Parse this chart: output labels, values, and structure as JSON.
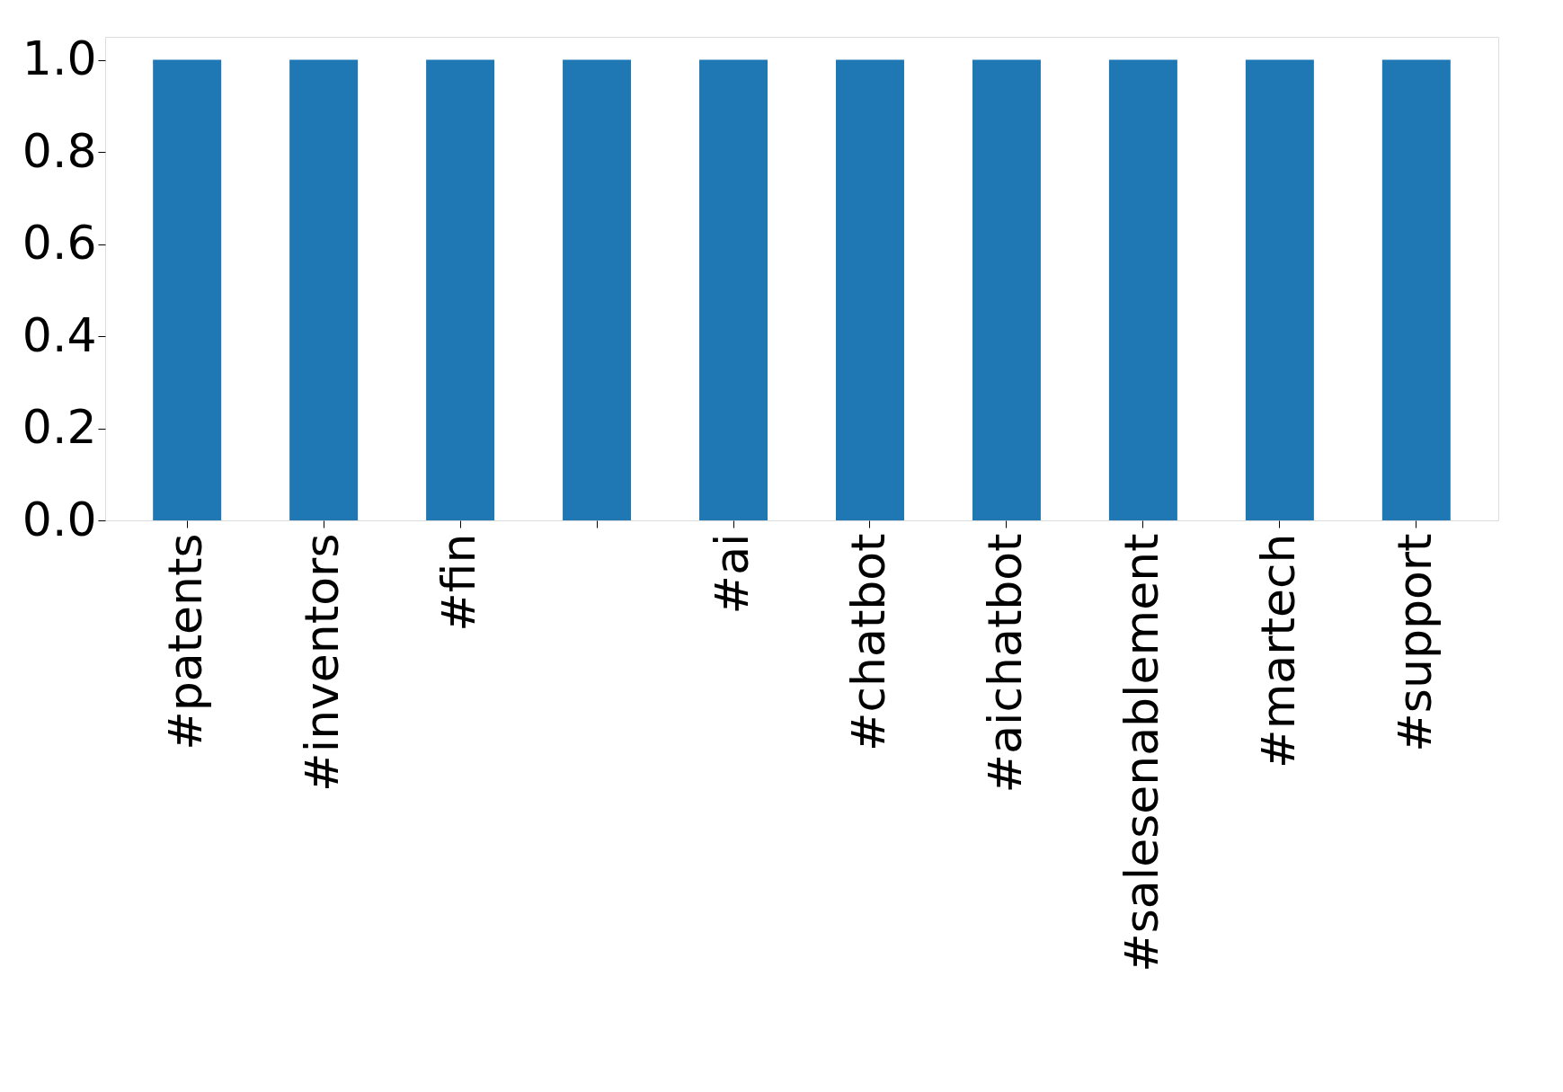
{
  "chart_data": {
    "type": "bar",
    "categories": [
      "#patents",
      "#inventors",
      "#fin",
      null,
      "#ai",
      "#chatbot",
      "#aichatbot",
      "#salesenablement",
      "#martech",
      "#support"
    ],
    "values": [
      1,
      1,
      1,
      1,
      1,
      1,
      1,
      1,
      1,
      1
    ],
    "color": "#1f77b4",
    "ylim": [
      0,
      1.05
    ],
    "yticks": [
      {
        "value": 0,
        "label": "0.0"
      },
      {
        "value": 0.2,
        "label": "0.2"
      },
      {
        "value": 0.4,
        "label": "0.4"
      },
      {
        "value": 0.6,
        "label": "0.6"
      },
      {
        "value": 0.8,
        "label": "0.8"
      },
      {
        "value": 1,
        "label": "1.0"
      }
    ],
    "grid": false
  }
}
